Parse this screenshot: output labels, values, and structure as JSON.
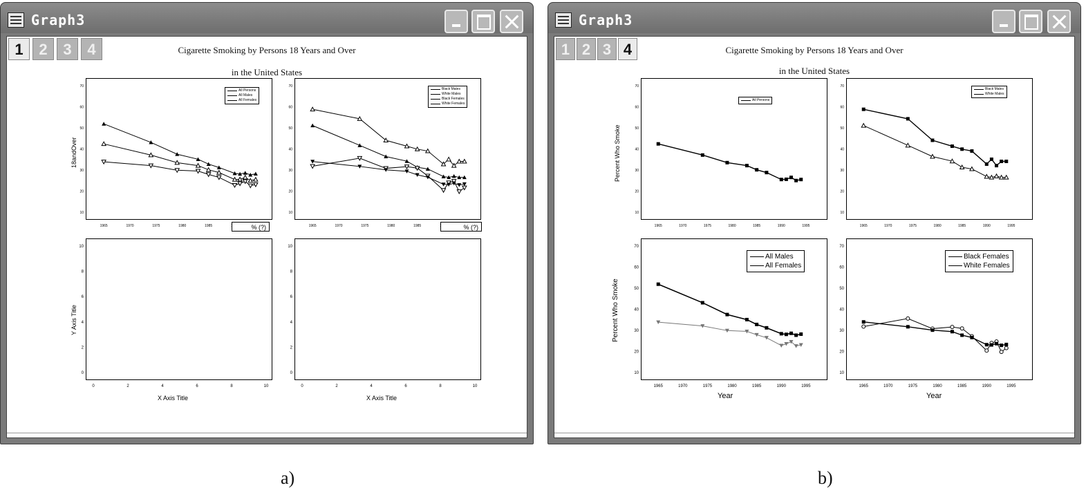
{
  "window_a": {
    "title": "Graph3",
    "tabs": [
      "1",
      "2",
      "3",
      "4"
    ],
    "active_tab": "1",
    "title_line1": "Cigarette Smoking by Persons 18 Years and Over",
    "title_line2": "in the United States",
    "ylabel_top": "18andOver",
    "ylabel_bottom": "Y Axis Title",
    "xlabel_bottom": "X Axis Title",
    "pill_label": "% (?)",
    "legend_left": [
      "All Persons",
      "All Males",
      "All Females"
    ],
    "legend_right": [
      "Black Males",
      "White Males",
      "Black Females",
      "White Females"
    ]
  },
  "window_b": {
    "title": "Graph3",
    "tabs": [
      "1",
      "2",
      "3",
      "4"
    ],
    "active_tab": "4",
    "title_line1": "Cigarette Smoking by Persons 18 Years and Over",
    "title_line2": "in the United States",
    "ylabel_top": "Percent Who Smoke",
    "ylabel_bottom": "Percent Who Smoke",
    "xlabel": "Year",
    "legend_tl": [
      "All Persons"
    ],
    "legend_tr": [
      "Black Males",
      "White Males"
    ],
    "legend_bl": [
      "All Males",
      "All Females"
    ],
    "legend_br": [
      "Black Females",
      "White Females"
    ]
  },
  "captions": {
    "a": "a)",
    "b": "b)"
  },
  "chart_data": [
    {
      "type": "line",
      "panel": "All Persons / All Males / All Females",
      "x": [
        1965,
        1974,
        1979,
        1983,
        1985,
        1987,
        1990,
        1991,
        1992,
        1993,
        1994
      ],
      "series": [
        {
          "name": "All Persons",
          "values": [
            42.4,
            37.1,
            33.5,
            32.1,
            30.1,
            28.8,
            25.5,
            25.6,
            26.5,
            25.0,
            25.5
          ]
        },
        {
          "name": "All Males",
          "values": [
            51.9,
            43.1,
            37.5,
            35.1,
            32.8,
            31.2,
            28.4,
            28.1,
            28.6,
            27.7,
            28.2
          ]
        },
        {
          "name": "All Females",
          "values": [
            33.9,
            32.1,
            29.9,
            29.5,
            27.9,
            26.5,
            22.8,
            23.6,
            24.6,
            22.6,
            23.1
          ]
        }
      ],
      "xlim": [
        1963,
        1996
      ],
      "ylim": [
        10,
        70
      ]
    },
    {
      "type": "line",
      "panel": "By race and sex",
      "x": [
        1965,
        1974,
        1979,
        1983,
        1985,
        1987,
        1990,
        1991,
        1992,
        1993,
        1994
      ],
      "series": [
        {
          "name": "Black Males",
          "values": [
            58.8,
            54.3,
            44.1,
            41.3,
            39.9,
            39.0,
            32.8,
            35.1,
            32.1,
            34.1,
            34.1
          ]
        },
        {
          "name": "White Males",
          "values": [
            51.1,
            41.7,
            36.4,
            34.2,
            31.3,
            30.5,
            26.9,
            26.5,
            27.1,
            26.5,
            26.5
          ]
        },
        {
          "name": "Black Females",
          "values": [
            31.8,
            35.6,
            30.8,
            31.6,
            30.9,
            27.2,
            20.4,
            24.0,
            24.7,
            19.8,
            21.6
          ]
        },
        {
          "name": "White Females",
          "values": [
            34.0,
            31.7,
            30.1,
            29.4,
            27.7,
            26.6,
            23.2,
            23.1,
            23.7,
            22.9,
            23.3
          ]
        }
      ],
      "xlim": [
        1963,
        1996
      ],
      "ylim": [
        10,
        70
      ]
    },
    {
      "type": "line",
      "panel": "empty placeholder",
      "xlabel": "X Axis Title",
      "ylabel": "Y Axis Title",
      "xlim": [
        0,
        10
      ],
      "ylim": [
        0,
        10
      ],
      "x_ticks": [
        "0",
        "2",
        "4",
        "6",
        "8",
        "10"
      ],
      "y_ticks": [
        "0",
        "2",
        "4",
        "6",
        "8",
        "10"
      ]
    },
    {
      "type": "line",
      "panel": "b bottom-left",
      "xlabel": "Year",
      "ylabel": "Percent Who Smoke",
      "x_ticks": [
        "1965",
        "1970",
        "1975",
        "1980",
        "1985",
        "1990",
        "1995"
      ],
      "y_ticks": [
        "10",
        "20",
        "30",
        "40",
        "50",
        "60",
        "70"
      ],
      "x": [
        1965,
        1974,
        1979,
        1983,
        1985,
        1987,
        1990,
        1991,
        1992,
        1993,
        1994
      ],
      "series": [
        {
          "name": "All Males",
          "values": [
            51.9,
            43.1,
            37.5,
            35.1,
            32.8,
            31.2,
            28.4,
            28.1,
            28.6,
            27.7,
            28.2
          ]
        },
        {
          "name": "All Females",
          "values": [
            33.9,
            32.1,
            29.9,
            29.5,
            27.9,
            26.5,
            22.8,
            23.6,
            24.6,
            22.6,
            23.1
          ]
        }
      ],
      "xlim": [
        1963,
        1996
      ],
      "ylim": [
        10,
        70
      ]
    },
    {
      "type": "line",
      "panel": "b bottom-right",
      "xlabel": "Year",
      "x_ticks": [
        "1965",
        "1970",
        "1975",
        "1980",
        "1985",
        "1990",
        "1995"
      ],
      "y_ticks": [
        "10",
        "20",
        "30",
        "40",
        "50",
        "60",
        "70"
      ],
      "x": [
        1965,
        1974,
        1979,
        1983,
        1985,
        1987,
        1990,
        1991,
        1992,
        1993,
        1994
      ],
      "series": [
        {
          "name": "Black Females",
          "values": [
            31.8,
            35.6,
            30.8,
            31.6,
            30.9,
            27.2,
            20.4,
            24.0,
            24.7,
            19.8,
            21.6
          ]
        },
        {
          "name": "White Females",
          "values": [
            34.0,
            31.7,
            30.1,
            29.4,
            27.7,
            26.6,
            23.2,
            23.1,
            23.7,
            22.9,
            23.3
          ]
        }
      ],
      "xlim": [
        1963,
        1996
      ],
      "ylim": [
        10,
        70
      ]
    }
  ]
}
